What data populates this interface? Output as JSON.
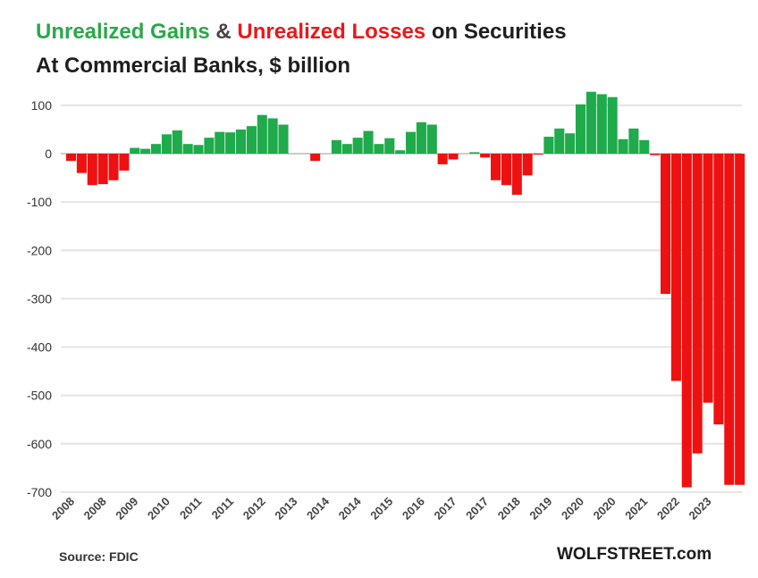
{
  "title": {
    "parts": [
      {
        "text": "Unrealized Gains",
        "color": "#2ba84a"
      },
      {
        "text": " & ",
        "color": "#444444"
      },
      {
        "text": "Unrealized Losses",
        "color": "#e8191c"
      },
      {
        "text": " on Securities",
        "color": "#1e1e1e"
      }
    ],
    "subtitle": "At Commercial Banks, $ billion"
  },
  "source": "Source: FDIC",
  "brand": "WOLFSTREET.com",
  "chart_data": {
    "type": "bar",
    "title": "Unrealized Gains & Unrealized Losses on Securities",
    "subtitle": "At Commercial Banks, $ billion",
    "ylim": [
      -700,
      100
    ],
    "yticks": [
      100,
      0,
      -100,
      -200,
      -300,
      -400,
      -500,
      -600,
      -700
    ],
    "grid": true,
    "colors": {
      "gain": "#1faa4b",
      "loss": "#ee1111"
    },
    "x_tick_labels": [
      "2008",
      "2008",
      "2009",
      "2010",
      "2011",
      "2011",
      "2012",
      "2013",
      "2014",
      "2014",
      "2015",
      "2016",
      "2017",
      "2017",
      "2018",
      "2019",
      "2020",
      "2020",
      "2021",
      "2022",
      "2023"
    ],
    "values": [
      -15,
      -40,
      -65,
      -63,
      -55,
      -35,
      12,
      10,
      20,
      40,
      48,
      20,
      18,
      33,
      45,
      44,
      50,
      57,
      80,
      73,
      60,
      0,
      0,
      -15,
      0,
      28,
      20,
      33,
      47,
      20,
      32,
      7,
      45,
      65,
      60,
      -22,
      -12,
      0,
      3,
      -8,
      -55,
      -65,
      -85,
      -45,
      -2,
      35,
      52,
      42,
      102,
      128,
      123,
      117,
      30,
      52,
      28,
      -3,
      -290,
      -470,
      -690,
      -620,
      -515,
      -560,
      -685,
      -685
    ]
  }
}
